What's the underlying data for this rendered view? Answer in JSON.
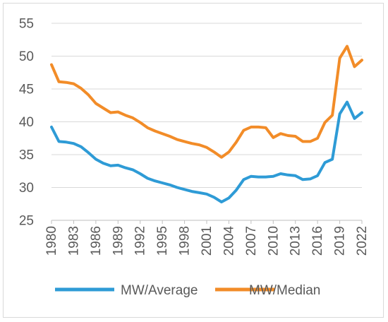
{
  "chart_data": {
    "type": "line",
    "title": "",
    "xlabel": "",
    "ylabel": "",
    "ylim": [
      25,
      55
    ],
    "yticks": [
      25,
      30,
      35,
      40,
      45,
      50,
      55
    ],
    "xlim": [
      1980,
      2022
    ],
    "xticks": [
      "1980",
      "1983",
      "1986",
      "1989",
      "1992",
      "1995",
      "1998",
      "2001",
      "2004",
      "2007",
      "2010",
      "2013",
      "2016",
      "2019",
      "2022"
    ],
    "grid": "horizontal",
    "legend_position": "bottom",
    "x": [
      1980,
      1981,
      1982,
      1983,
      1984,
      1985,
      1986,
      1987,
      1988,
      1989,
      1990,
      1991,
      1992,
      1993,
      1994,
      1995,
      1996,
      1997,
      1998,
      1999,
      2000,
      2001,
      2002,
      2003,
      2004,
      2005,
      2006,
      2007,
      2008,
      2009,
      2010,
      2011,
      2012,
      2013,
      2014,
      2015,
      2016,
      2017,
      2018,
      2019,
      2020,
      2021,
      2022
    ],
    "series": [
      {
        "name": "MW/Average",
        "color": "#2e9bd6",
        "values": [
          39.2,
          37.0,
          36.9,
          36.7,
          36.2,
          35.3,
          34.3,
          33.7,
          33.3,
          33.4,
          33.0,
          32.7,
          32.1,
          31.4,
          31.0,
          30.7,
          30.4,
          30.0,
          29.7,
          29.4,
          29.2,
          29.0,
          28.5,
          27.8,
          28.4,
          29.6,
          31.2,
          31.7,
          31.6,
          31.6,
          31.7,
          32.1,
          31.9,
          31.8,
          31.2,
          31.3,
          31.8,
          33.8,
          34.3,
          41.2,
          43.0,
          40.5,
          41.4
        ]
      },
      {
        "name": "MW/Median",
        "color": "#f28c28",
        "values": [
          48.7,
          46.1,
          46.0,
          45.8,
          45.1,
          44.1,
          42.8,
          42.1,
          41.4,
          41.5,
          41.0,
          40.6,
          39.9,
          39.1,
          38.6,
          38.2,
          37.8,
          37.3,
          37.0,
          36.7,
          36.5,
          36.1,
          35.4,
          34.6,
          35.4,
          36.9,
          38.7,
          39.2,
          39.2,
          39.1,
          37.6,
          38.2,
          37.9,
          37.8,
          37.0,
          37.0,
          37.5,
          39.9,
          41.0,
          49.7,
          51.5,
          48.4,
          49.4
        ]
      }
    ]
  }
}
